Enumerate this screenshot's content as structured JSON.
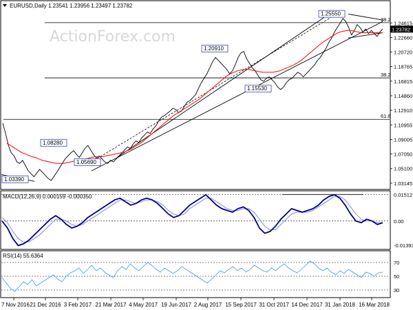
{
  "colors": {
    "price": "#000000",
    "sma": "#ff0000",
    "macd": "#000080",
    "signal": "#8080ff",
    "rsi": "#3399ff",
    "trendline": "#000000",
    "fib": "#000000",
    "watermark": "#d8d8d8"
  },
  "chart_data": [
    {
      "type": "line",
      "title": "EURUSD,Daily  1.23541 1.23956 1.23497 1.23782",
      "watermark": "ActionForex.com",
      "ylim": [
        1.024,
        1.275
      ],
      "yticks": [
        "1.24615",
        "1.22660",
        "1.20720",
        "1.18765",
        "1.16815",
        "1.14860",
        "1.12910",
        "1.10955",
        "1.09005",
        "1.07050",
        "1.05100",
        "1.03145"
      ],
      "current_price": "1.23782",
      "xticks": [
        "7 Nov 2016",
        "21 Dec 2016",
        "3 Feb 2017",
        "21 Mar 2017",
        "4 May 2017",
        "19 Jun 2017",
        "2 Aug 2017",
        "15 Sep 2017",
        "31 Oct 2017",
        "14 Dec 2017",
        "31 Jan 2018",
        "16 Mar 2018"
      ],
      "fibonacci": [
        {
          "label": "38.2",
          "value": 1.2465
        },
        {
          "label": "38.2",
          "value": 1.1725
        },
        {
          "label": "61.8",
          "value": 1.117
        }
      ],
      "annotations": [
        {
          "label": "1.03390",
          "value": 1.0339
        },
        {
          "label": "1.08280",
          "value": 1.0828
        },
        {
          "label": "1.05690",
          "value": 1.0569
        },
        {
          "label": "1.20910",
          "value": 1.2091
        },
        {
          "label": "1.15530",
          "value": 1.1553
        },
        {
          "label": "1.25550",
          "value": 1.2555
        }
      ],
      "series": [
        {
          "kind": "price",
          "values": [
            1.112,
            1.098,
            1.082,
            1.072,
            1.068,
            1.06,
            1.058,
            1.062,
            1.055,
            1.048,
            1.044,
            1.04,
            1.045,
            1.05,
            1.046,
            1.042,
            1.038,
            1.035,
            1.04,
            1.046,
            1.052,
            1.058,
            1.064,
            1.068,
            1.072,
            1.075,
            1.07,
            1.066,
            1.072,
            1.078,
            1.082,
            1.076,
            1.07,
            1.065,
            1.068,
            1.064,
            1.06,
            1.058,
            1.062,
            1.06,
            1.064,
            1.068,
            1.072,
            1.076,
            1.08,
            1.078,
            1.084,
            1.088,
            1.086,
            1.092,
            1.096,
            1.1,
            1.098,
            1.104,
            1.108,
            1.115,
            1.12,
            1.122,
            1.125,
            1.128,
            1.132,
            1.13,
            1.126,
            1.128,
            1.134,
            1.14,
            1.142,
            1.146,
            1.15,
            1.158,
            1.166,
            1.172,
            1.178,
            1.186,
            1.194,
            1.2,
            1.196,
            1.192,
            1.188,
            1.184,
            1.178,
            1.182,
            1.19,
            1.2,
            1.206,
            1.208,
            1.198,
            1.192,
            1.186,
            1.182,
            1.176,
            1.17,
            1.168,
            1.172,
            1.174,
            1.17,
            1.166,
            1.16,
            1.157,
            1.16,
            1.166,
            1.17,
            1.172,
            1.176,
            1.18,
            1.178,
            1.174,
            1.178,
            1.182,
            1.186,
            1.19,
            1.196,
            1.2,
            1.206,
            1.212,
            1.22,
            1.226,
            1.234,
            1.24,
            1.246,
            1.252,
            1.248,
            1.24,
            1.23,
            1.236,
            1.244,
            1.24,
            1.234,
            1.238,
            1.232,
            1.236,
            1.232,
            1.228,
            1.234,
            1.238
          ]
        },
        {
          "kind": "sma",
          "values": [
            1.085,
            1.082,
            1.079,
            1.076,
            1.073,
            1.071,
            1.069,
            1.067,
            1.066,
            1.064,
            1.062,
            1.061,
            1.06,
            1.059,
            1.058,
            1.058,
            1.058,
            1.059,
            1.06,
            1.061,
            1.062,
            1.063,
            1.064,
            1.065,
            1.066,
            1.067,
            1.067,
            1.067,
            1.068,
            1.069,
            1.07,
            1.071,
            1.072,
            1.073,
            1.075,
            1.077,
            1.08,
            1.083,
            1.086,
            1.09,
            1.094,
            1.098,
            1.102,
            1.106,
            1.11,
            1.114,
            1.118,
            1.122,
            1.125,
            1.128,
            1.131,
            1.134,
            1.137,
            1.14,
            1.143,
            1.147,
            1.151,
            1.155,
            1.159,
            1.163,
            1.167,
            1.171,
            1.175,
            1.178,
            1.18,
            1.182,
            1.183,
            1.184,
            1.184,
            1.183,
            1.182,
            1.181,
            1.18,
            1.18,
            1.18,
            1.18,
            1.181,
            1.182,
            1.184,
            1.186,
            1.188,
            1.19,
            1.193,
            1.196,
            1.2,
            1.204,
            1.208,
            1.212,
            1.216,
            1.22,
            1.223,
            1.226,
            1.229,
            1.232,
            1.234,
            1.235,
            1.236,
            1.236,
            1.235,
            1.234,
            1.233,
            1.233,
            1.233,
            1.233,
            1.233,
            1.233,
            1.233
          ]
        }
      ]
    },
    {
      "type": "line",
      "title": "MACD(12,26,9) 0.000159 -0.000350",
      "ylim": [
        -0.0158,
        0.0164
      ],
      "yticks": [
        "0.01512",
        "0.00",
        "-0.01393"
      ],
      "series": [
        {
          "kind": "macd",
          "values": [
            0.0,
            -0.004,
            -0.01,
            -0.014,
            -0.013,
            -0.011,
            -0.008,
            -0.005,
            -0.002,
            0.001,
            0.003,
            0.001,
            -0.002,
            -0.004,
            -0.003,
            -0.001,
            0.002,
            0.004,
            0.006,
            0.008,
            0.01,
            0.012,
            0.013,
            0.011,
            0.009,
            0.01,
            0.012,
            0.013,
            0.012,
            0.01,
            0.007,
            0.004,
            0.002,
            0.003,
            0.006,
            0.009,
            0.011,
            0.013,
            0.015,
            0.012,
            0.009,
            0.007,
            0.006,
            0.005,
            0.007,
            0.008,
            0.006,
            0.002,
            -0.004,
            -0.007,
            -0.006,
            -0.003,
            0.001,
            0.004,
            0.007,
            0.006,
            0.005,
            0.006,
            0.007,
            0.009,
            0.012,
            0.014,
            0.015,
            0.013,
            0.009,
            0.004,
            0.0,
            -0.001,
            0.001,
            0.0,
            -0.002,
            -0.001
          ]
        },
        {
          "kind": "signal",
          "values": [
            0.002,
            -0.001,
            -0.006,
            -0.01,
            -0.012,
            -0.012,
            -0.01,
            -0.008,
            -0.005,
            -0.002,
            0.001,
            0.001,
            0.0,
            -0.002,
            -0.003,
            -0.002,
            0.0,
            0.002,
            0.004,
            0.006,
            0.008,
            0.01,
            0.012,
            0.012,
            0.011,
            0.01,
            0.011,
            0.012,
            0.012,
            0.011,
            0.009,
            0.006,
            0.004,
            0.003,
            0.004,
            0.007,
            0.009,
            0.011,
            0.013,
            0.013,
            0.011,
            0.009,
            0.007,
            0.006,
            0.006,
            0.007,
            0.007,
            0.005,
            0.001,
            -0.003,
            -0.005,
            -0.005,
            -0.002,
            0.001,
            0.004,
            0.005,
            0.005,
            0.005,
            0.006,
            0.008,
            0.01,
            0.012,
            0.014,
            0.014,
            0.012,
            0.008,
            0.004,
            0.001,
            0.0,
            0.0,
            -0.001,
            -0.001
          ]
        }
      ]
    },
    {
      "type": "line",
      "title": "RSI(14) 55.6364",
      "ylim": [
        20,
        85
      ],
      "yticks": [
        "70",
        "50",
        "30"
      ],
      "series": [
        {
          "kind": "rsi",
          "values": [
            48,
            40,
            32,
            28,
            35,
            42,
            38,
            45,
            36,
            40,
            44,
            48,
            52,
            46,
            42,
            50,
            55,
            58,
            62,
            54,
            60,
            66,
            58,
            62,
            56,
            52,
            48,
            58,
            64,
            60,
            68,
            62,
            58,
            64,
            70,
            66,
            60,
            56,
            62,
            58,
            54,
            58,
            64,
            60,
            56,
            52,
            48,
            44,
            40,
            46,
            52,
            58,
            55,
            60,
            64,
            58,
            62,
            56,
            60,
            66,
            62,
            58,
            56,
            62,
            58,
            64,
            68,
            62,
            58,
            55,
            60,
            66,
            72,
            68,
            62,
            58,
            62,
            56,
            52,
            58,
            54,
            60,
            56,
            52,
            48,
            56,
            54,
            50,
            55,
            56
          ]
        }
      ]
    }
  ]
}
